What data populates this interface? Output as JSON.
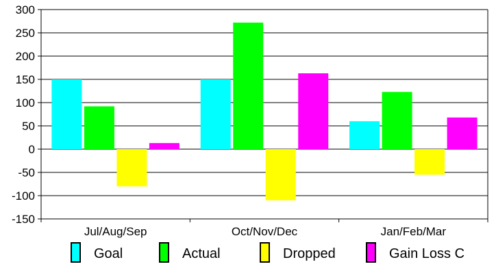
{
  "chart_data": {
    "type": "bar",
    "title": "",
    "xlabel": "",
    "ylabel": "",
    "categories": [
      "Jul/Aug/Sep",
      "Oct/Nov/Dec",
      "Jan/Feb/Mar"
    ],
    "series": [
      {
        "name": "Goal",
        "values": [
          150,
          150,
          60
        ],
        "color": "#00ffff"
      },
      {
        "name": "Actual",
        "values": [
          92,
          272,
          123
        ],
        "color": "#00ff00"
      },
      {
        "name": "Dropped",
        "values": [
          -80,
          -110,
          -55
        ],
        "color": "#ffff00"
      },
      {
        "name": "Gain Loss C",
        "values": [
          13,
          163,
          68
        ],
        "color": "#ff00ff"
      }
    ],
    "ylim": [
      -150,
      300
    ],
    "yticks": [
      -150,
      -100,
      -50,
      0,
      50,
      100,
      150,
      200,
      250,
      300
    ],
    "ytick_labels": [
      "-150",
      "-100",
      "-50",
      "0",
      "50",
      "100",
      "150",
      "200",
      "250",
      "300"
    ],
    "grid": true,
    "legend_position": "bottom"
  }
}
